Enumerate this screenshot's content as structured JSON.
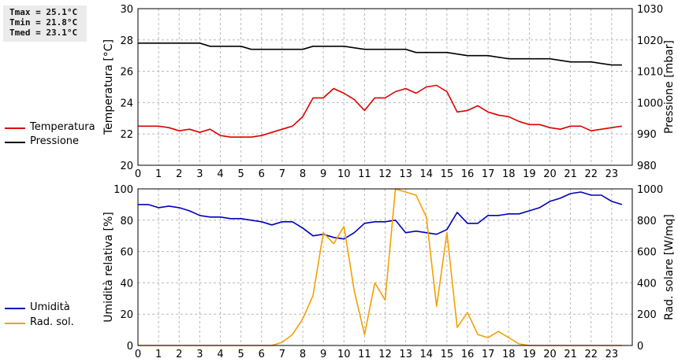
{
  "stats": {
    "tmax": "Tmax = 25.1°C",
    "tmin": "Tmin = 21.8°C",
    "tmed": "Tmed = 23.1°C"
  },
  "legends": {
    "top": [
      {
        "label": "Temperatura",
        "color": "#dd0000"
      },
      {
        "label": "Pressione",
        "color": "#000000"
      }
    ],
    "bottom": [
      {
        "label": "Umidità",
        "color": "#0000bb"
      },
      {
        "label": "Rad. sol.",
        "color": "#f5a000"
      }
    ]
  },
  "chart_data": [
    {
      "type": "line",
      "ylabel": "Temperatura [°C]",
      "y2label": "Pressione [mbar]",
      "xlim": [
        0,
        24
      ],
      "ylim": [
        20,
        30
      ],
      "y2lim": [
        980,
        1030
      ],
      "x_ticks": [
        "0",
        "1",
        "2",
        "3",
        "4",
        "5",
        "6",
        "7",
        "8",
        "9",
        "10",
        "11",
        "12",
        "13",
        "14",
        "15",
        "16",
        "17",
        "18",
        "19",
        "20",
        "21",
        "22",
        "23"
      ],
      "y_ticks": [
        "20",
        "22",
        "24",
        "26",
        "28",
        "30"
      ],
      "y2_ticks": [
        "980",
        "990",
        "1000",
        "1010",
        "1020",
        "1030"
      ],
      "grid": true,
      "series": [
        {
          "name": "Temperatura",
          "axis": "left",
          "color": "#dd0000",
          "x": [
            0,
            0.5,
            1,
            1.5,
            2,
            2.5,
            3,
            3.5,
            4,
            4.5,
            5,
            5.5,
            6,
            6.5,
            7,
            7.5,
            8,
            8.5,
            9,
            9.5,
            10,
            10.5,
            11,
            11.5,
            12,
            12.5,
            13,
            13.5,
            14,
            14.5,
            15,
            15.5,
            16,
            16.5,
            17,
            17.5,
            18,
            18.5,
            19,
            19.5,
            20,
            20.5,
            21,
            21.5,
            22,
            22.5,
            23,
            23.5
          ],
          "values": [
            22.5,
            22.5,
            22.5,
            22.4,
            22.2,
            22.3,
            22.1,
            22.3,
            21.9,
            21.8,
            21.8,
            21.8,
            21.9,
            22.1,
            22.3,
            22.5,
            23.1,
            24.3,
            24.3,
            24.9,
            24.6,
            24.2,
            23.5,
            24.3,
            24.3,
            24.7,
            24.9,
            24.6,
            25.0,
            25.1,
            24.7,
            23.4,
            23.5,
            23.8,
            23.4,
            23.2,
            23.1,
            22.8,
            22.6,
            22.6,
            22.4,
            22.3,
            22.5,
            22.5,
            22.2,
            22.3,
            22.4,
            22.5
          ]
        },
        {
          "name": "Pressione",
          "axis": "right",
          "color": "#000000",
          "x": [
            0,
            1,
            2,
            3,
            3.5,
            4,
            5,
            5.5,
            6,
            7,
            8,
            8.5,
            9,
            10,
            11,
            11.5,
            12,
            13,
            13.5,
            14,
            15,
            16,
            16.5,
            17,
            18,
            19,
            20,
            21,
            22,
            23,
            23.5
          ],
          "values": [
            1019,
            1019,
            1019,
            1019,
            1018,
            1018,
            1018,
            1017,
            1017,
            1017,
            1017,
            1018,
            1018,
            1018,
            1017,
            1017,
            1017,
            1017,
            1016,
            1016,
            1016,
            1015,
            1015,
            1015,
            1014,
            1014,
            1014,
            1013,
            1013,
            1012,
            1012
          ]
        }
      ]
    },
    {
      "type": "line",
      "ylabel": "Umidità relativa [%]",
      "y2label": "Rad. solare [W/mq]",
      "xlim": [
        0,
        24
      ],
      "ylim": [
        0,
        100
      ],
      "y2lim": [
        0,
        1000
      ],
      "x_ticks": [
        "0",
        "1",
        "2",
        "3",
        "4",
        "5",
        "6",
        "7",
        "8",
        "9",
        "10",
        "11",
        "12",
        "13",
        "14",
        "15",
        "16",
        "17",
        "18",
        "19",
        "20",
        "21",
        "22",
        "23"
      ],
      "y_ticks": [
        "0",
        "20",
        "40",
        "60",
        "80",
        "100"
      ],
      "y2_ticks": [
        "0",
        "200",
        "400",
        "600",
        "800",
        "1000"
      ],
      "grid": true,
      "series": [
        {
          "name": "Umidità",
          "axis": "left",
          "color": "#0000bb",
          "x": [
            0,
            0.5,
            1,
            1.5,
            2,
            2.5,
            3,
            3.5,
            4,
            4.5,
            5,
            5.5,
            6,
            6.5,
            7,
            7.5,
            8,
            8.5,
            9,
            9.5,
            10,
            10.5,
            11,
            11.5,
            12,
            12.5,
            13,
            13.5,
            14,
            14.5,
            15,
            15.5,
            16,
            16.5,
            17,
            17.5,
            18,
            18.5,
            19,
            19.5,
            20,
            20.5,
            21,
            21.5,
            22,
            22.5,
            23,
            23.5
          ],
          "values": [
            90,
            90,
            88,
            89,
            88,
            86,
            83,
            82,
            82,
            81,
            81,
            80,
            79,
            77,
            79,
            79,
            75,
            70,
            71,
            69,
            68,
            72,
            78,
            79,
            79,
            80,
            72,
            73,
            72,
            71,
            74,
            85,
            78,
            78,
            83,
            83,
            84,
            84,
            86,
            88,
            92,
            94,
            97,
            98,
            96,
            96,
            92,
            90
          ]
        },
        {
          "name": "Rad. sol.",
          "axis": "right",
          "color": "#f5a000",
          "x": [
            0,
            0.5,
            1,
            1.5,
            2,
            2.5,
            3,
            3.5,
            4,
            4.5,
            5,
            5.5,
            6,
            6.5,
            7,
            7.5,
            8,
            8.5,
            9,
            9.5,
            10,
            10.5,
            11,
            11.5,
            12,
            12.5,
            13,
            13.5,
            14,
            14.5,
            15,
            15.5,
            16,
            16.5,
            17,
            17.5,
            18,
            18.5,
            19,
            19.5,
            20,
            20.5,
            21,
            21.5,
            22,
            22.5,
            23,
            23.5
          ],
          "values": [
            0,
            0,
            0,
            0,
            0,
            0,
            0,
            0,
            0,
            0,
            0,
            0,
            0,
            0,
            20,
            70,
            170,
            320,
            720,
            650,
            760,
            350,
            70,
            400,
            290,
            1000,
            980,
            960,
            820,
            250,
            720,
            115,
            210,
            70,
            50,
            90,
            50,
            10,
            0,
            0,
            0,
            0,
            0,
            0,
            0,
            0,
            0,
            0
          ]
        }
      ]
    }
  ]
}
